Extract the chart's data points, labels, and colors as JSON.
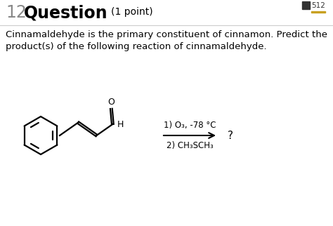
{
  "title_number": "12",
  "title_bold": "Question",
  "title_normal": "(1 point)",
  "line1": "Cinnamaldehyde is the primary constituent of cinnamon. Predict the",
  "line2": "product(s) of the following reaction of cinnamaldehyde.",
  "reaction_line1": "1) O₃, -78 °C",
  "reaction_line2": "2) CH₃SCH₃",
  "question_mark": "?",
  "background_color": "#ffffff",
  "text_color": "#000000",
  "gray_color": "#888888",
  "chegg_icon_color": "#555555",
  "chegg_text": "512",
  "fig_width": 4.74,
  "fig_height": 3.22,
  "dpi": 100
}
